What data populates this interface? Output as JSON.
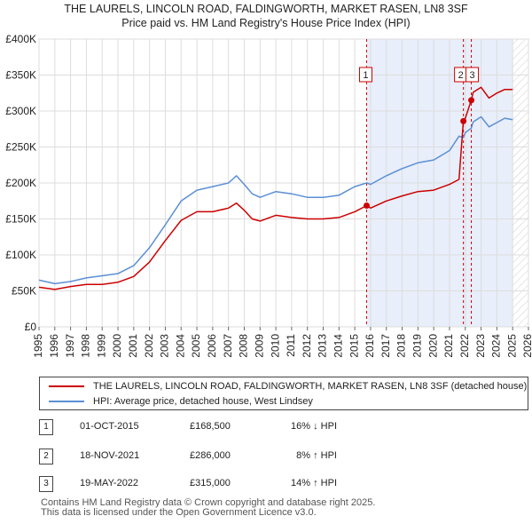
{
  "title_line1": "THE LAURELS, LINCOLN ROAD, FALDINGWORTH, MARKET RASEN, LN8 3SF",
  "title_line2": "Price paid vs. HM Land Registry's House Price Index (HPI)",
  "chart_data": {
    "type": "line",
    "title": "THE LAURELS, LINCOLN ROAD, FALDINGWORTH, MARKET RASEN, LN8 3SF — Price paid vs. HM Land Registry's House Price Index (HPI)",
    "xlim": [
      1995,
      2026
    ],
    "ylim": [
      0,
      400000
    ],
    "x_ticks": [
      1995,
      1996,
      1997,
      1998,
      1999,
      2000,
      2001,
      2002,
      2003,
      2004,
      2005,
      2006,
      2007,
      2008,
      2009,
      2010,
      2011,
      2012,
      2013,
      2014,
      2015,
      2016,
      2017,
      2018,
      2019,
      2020,
      2021,
      2022,
      2023,
      2024,
      2025,
      2026
    ],
    "y_ticks": [
      0,
      50000,
      100000,
      150000,
      200000,
      250000,
      300000,
      350000,
      400000
    ],
    "y_tick_labels": [
      "£0",
      "£50K",
      "£100K",
      "£150K",
      "£200K",
      "£250K",
      "£300K",
      "£350K",
      "£400K"
    ],
    "colors": {
      "property": "#cc0000",
      "hpi": "#5b8fd4",
      "shade": "#e8eefa",
      "grid": "#dddddd"
    },
    "series": [
      {
        "name": "THE LAURELS, LINCOLN ROAD, FALDINGWORTH, MARKET RASEN, LN8 3SF (detached house)",
        "color": "#cc0000",
        "x": [
          1995,
          1996,
          1997,
          1998,
          1999,
          2000,
          2001,
          2002,
          2003,
          2004,
          2005,
          2006,
          2007,
          2007.5,
          2008,
          2008.5,
          2009,
          2010,
          2011,
          2012,
          2013,
          2014,
          2015,
          2015.75,
          2016,
          2017,
          2018,
          2019,
          2020,
          2021,
          2021.6,
          2021.88,
          2022,
          2022.38,
          2022.5,
          2023,
          2023.5,
          2024,
          2024.5,
          2025
        ],
        "values": [
          55000,
          52000,
          56000,
          59000,
          59000,
          62000,
          70000,
          90000,
          120000,
          148000,
          160000,
          160000,
          165000,
          172000,
          162000,
          150000,
          147000,
          155000,
          152000,
          150000,
          150000,
          152000,
          160000,
          168500,
          165000,
          175000,
          182000,
          188000,
          190000,
          198000,
          205000,
          286000,
          290000,
          315000,
          326000,
          333000,
          318000,
          325000,
          330000,
          330000
        ]
      },
      {
        "name": "HPI: Average price, detached house, West Lindsey",
        "color": "#5b8fd4",
        "x": [
          1995,
          1996,
          1997,
          1998,
          1999,
          2000,
          2001,
          2002,
          2003,
          2004,
          2005,
          2006,
          2007,
          2007.5,
          2008,
          2008.5,
          2009,
          2010,
          2011,
          2012,
          2013,
          2014,
          2015,
          2015.75,
          2016,
          2017,
          2018,
          2019,
          2020,
          2021,
          2021.6,
          2021.88,
          2022,
          2022.38,
          2022.5,
          2023,
          2023.5,
          2024,
          2024.5,
          2025
        ],
        "values": [
          65000,
          60000,
          63000,
          68000,
          71000,
          74000,
          85000,
          110000,
          142000,
          175000,
          190000,
          195000,
          200000,
          210000,
          198000,
          185000,
          180000,
          188000,
          185000,
          180000,
          180000,
          183000,
          195000,
          200000,
          198000,
          210000,
          220000,
          228000,
          232000,
          245000,
          265000,
          263000,
          270000,
          276000,
          285000,
          292000,
          278000,
          284000,
          290000,
          288000
        ]
      }
    ],
    "markers": [
      {
        "label": "1",
        "x": 2015.75,
        "value": 168500
      },
      {
        "label": "2",
        "x": 2021.88,
        "value": 286000
      },
      {
        "label": "3",
        "x": 2022.38,
        "value": 315000
      }
    ],
    "forecast_start": 2025.0
  },
  "legend": {
    "property": "THE LAURELS, LINCOLN ROAD, FALDINGWORTH, MARKET RASEN, LN8 3SF (detached house)",
    "hpi": "HPI: Average price, detached house, West Lindsey"
  },
  "sales": [
    {
      "num": "1",
      "date": "01-OCT-2015",
      "price": "£168,500",
      "hpi": "16% ↓ HPI"
    },
    {
      "num": "2",
      "date": "18-NOV-2021",
      "price": "£286,000",
      "hpi": "8% ↑ HPI"
    },
    {
      "num": "3",
      "date": "19-MAY-2022",
      "price": "£315,000",
      "hpi": "14% ↑ HPI"
    }
  ],
  "footer": {
    "line1": "Contains HM Land Registry data © Crown copyright and database right 2025.",
    "line2": "This data is licensed under the Open Government Licence v3.0."
  }
}
